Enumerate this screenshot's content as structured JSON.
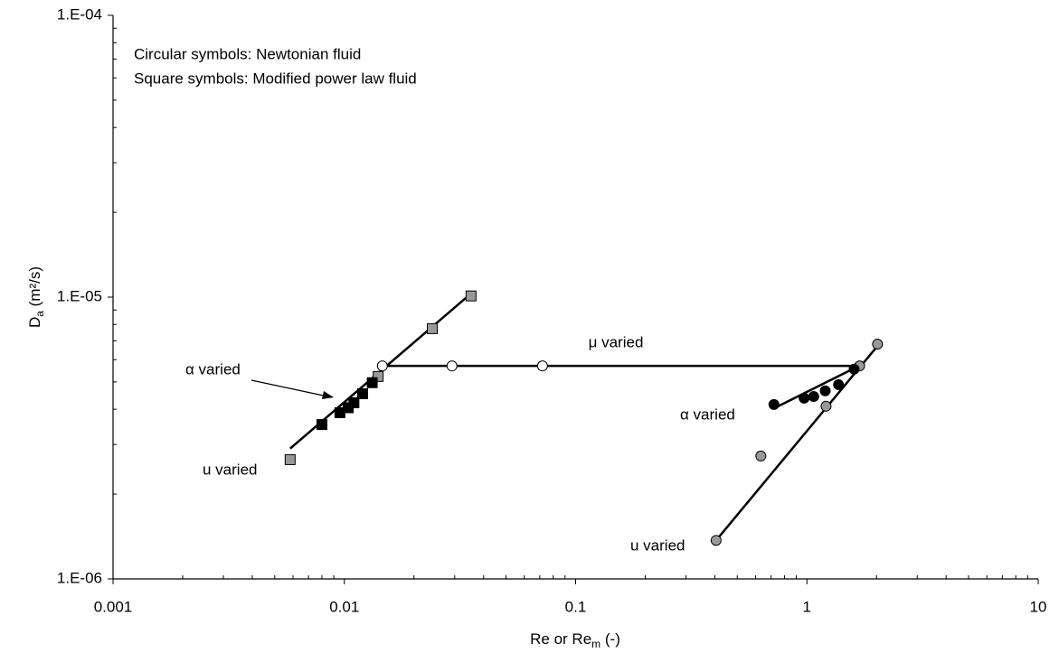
{
  "chart_data": {
    "type": "scatter",
    "x_label": {
      "main": "Re or Re",
      "sub": "m",
      "rest": " (-)"
    },
    "y_label": {
      "main": "D",
      "sub": "a",
      "rest": " (m²/s)"
    },
    "log_x": true,
    "log_y": true,
    "xlim": [
      0.001,
      10
    ],
    "ylim": [
      1e-06,
      0.0001
    ],
    "xticks": [
      0.001,
      0.01,
      0.1,
      1,
      10
    ],
    "yticks": [
      {
        "value": 1e-06,
        "label": "1.E-06"
      },
      {
        "value": 1e-05,
        "label": "1.E-05"
      },
      {
        "value": 0.0001,
        "label": "1.E-04"
      }
    ],
    "xminorticks": [
      0.002,
      0.003,
      0.004,
      0.005,
      0.006,
      0.007,
      0.008,
      0.009,
      0.02,
      0.03,
      0.04,
      0.05,
      0.06,
      0.07,
      0.08,
      0.09,
      0.2,
      0.3,
      0.4,
      0.5,
      0.6,
      0.7,
      0.8,
      0.9,
      2,
      3,
      4,
      5,
      6,
      7,
      8,
      9
    ],
    "yminorticks": [
      2e-06,
      3e-06,
      4e-06,
      5e-06,
      6e-06,
      7e-06,
      8e-06,
      9e-06,
      2e-05,
      3e-05,
      4e-05,
      5e-05,
      6e-05,
      7e-05,
      8e-05,
      9e-05
    ],
    "notes": [
      "Circular symbols: Newtonian fluid",
      "Square symbols: Modified power law fluid"
    ],
    "annotations": [
      "μ varied",
      "α varied",
      "u varied",
      "α varied",
      "u varied"
    ],
    "series": [
      {
        "marker": "square",
        "color": "#999999",
        "x": [
          0.00583,
          0.014,
          0.024,
          0.0353
        ],
        "values": [
          2.65e-06,
          5.23e-06,
          7.73e-06,
          1.01e-05
        ]
      },
      {
        "marker": "square",
        "color": "#000000",
        "x": [
          0.008,
          0.00957,
          0.0104,
          0.011,
          0.012,
          0.0132
        ],
        "values": [
          3.53e-06,
          3.89e-06,
          4.05e-06,
          4.22e-06,
          4.54e-06,
          4.97e-06
        ]
      },
      {
        "marker": "circle",
        "color": "#ffffff",
        "x": [
          0.0146,
          0.0292,
          0.0719
        ],
        "values": [
          5.7e-06,
          5.7e-06,
          5.7e-06
        ]
      },
      {
        "marker": "circle",
        "color": "#999999",
        "x": [
          0.405,
          0.632,
          1.21,
          1.69,
          2.02
        ],
        "values": [
          1.37e-06,
          2.73e-06,
          4.1e-06,
          5.7e-06,
          6.81e-06
        ]
      },
      {
        "marker": "circle",
        "color": "#000000",
        "x": [
          0.72,
          0.973,
          1.07,
          1.2,
          1.37,
          1.6
        ],
        "values": [
          4.16e-06,
          4.38e-06,
          4.44e-06,
          4.65e-06,
          4.89e-06,
          5.55e-06
        ]
      }
    ],
    "fit_lines": [
      {
        "x": [
          0.00583,
          0.0353
        ],
        "values": [
          2.9e-06,
          1.03e-05
        ]
      },
      {
        "x": [
          0.0142,
          1.68
        ],
        "values": [
          5.7e-06,
          5.7e-06
        ]
      },
      {
        "x": [
          0.405,
          2.05
        ],
        "values": [
          1.37e-06,
          6.81e-06
        ]
      },
      {
        "x": [
          0.72,
          1.68
        ],
        "values": [
          4.03e-06,
          5.7e-06
        ]
      }
    ]
  }
}
